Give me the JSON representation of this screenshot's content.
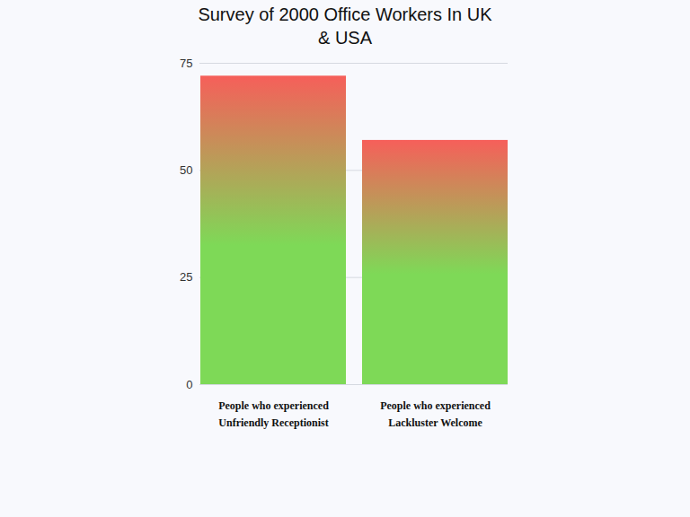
{
  "chart_data": {
    "type": "bar",
    "title": "Survey of 2000 Office Workers In UK & USA",
    "categories": [
      "People who experienced Unfriendly Receptionist",
      "People who experienced Lackluster Welcome"
    ],
    "values": [
      72,
      57
    ],
    "color": "#7ed957",
    "ylim": [
      0,
      75
    ],
    "yticks": [
      0,
      25,
      50,
      75
    ],
    "grid": true
  }
}
